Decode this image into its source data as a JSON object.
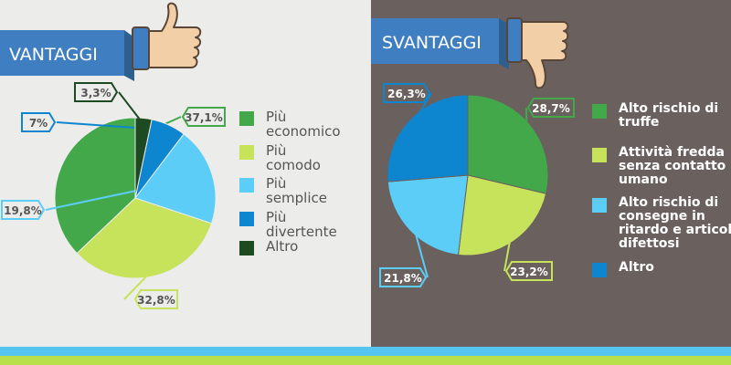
{
  "left_panel": {
    "banner_label": "VANTAGGI",
    "banner_icon": "thumbs-up-icon"
  },
  "right_panel": {
    "banner_label": "SVANTAGGI",
    "banner_icon": "thumbs-down-icon"
  },
  "colors": {
    "banner": "#3f7fc1",
    "banner_shadow": "#2e5f91",
    "hand": "#f3cfa8",
    "hand_outline": "#5a4636",
    "left_bg": "#ececeb",
    "right_bg": "#6a605e",
    "stripe_blue": "#56c5f0",
    "stripe_green": "#b8e04a"
  },
  "chart_data": [
    {
      "type": "pie",
      "title": "",
      "legend": "right",
      "slices": [
        {
          "label": "Più economico",
          "value": 37.1,
          "value_label": "37,1%",
          "color": "#43a84a"
        },
        {
          "label": "Più comodo",
          "value": 32.8,
          "value_label": "32,8%",
          "color": "#c6e35b"
        },
        {
          "label": "Più semplice",
          "value": 19.8,
          "value_label": "19,8%",
          "color": "#5ccdf7"
        },
        {
          "label": "Più divertente",
          "value": 7,
          "value_label": "7%",
          "color": "#0e86cf"
        },
        {
          "label": "Altro",
          "value": 3.3,
          "value_label": "3,3%",
          "color": "#1e4a22"
        }
      ]
    },
    {
      "type": "pie",
      "title": "",
      "legend": "right",
      "slices": [
        {
          "label": "Alto rischio di truffe",
          "value": 28.7,
          "value_label": "28,7%",
          "color": "#43a84a"
        },
        {
          "label": "Attività fredda senza contatto umano",
          "value": 23.2,
          "value_label": "23,2%",
          "color": "#c6e35b"
        },
        {
          "label": "Alto rischio di consegne in ritardo e articoli difettosi",
          "value": 21.8,
          "value_label": "21,8%",
          "color": "#5ccdf7"
        },
        {
          "label": "Altro",
          "value": 26.3,
          "value_label": "26,3%",
          "color": "#0e86cf"
        }
      ]
    }
  ]
}
